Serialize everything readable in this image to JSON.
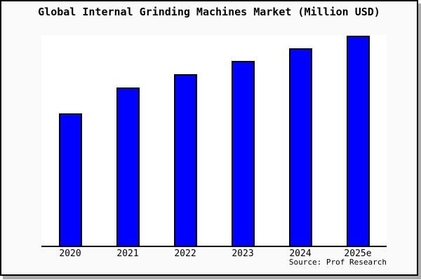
{
  "title": "Global Internal Grinding Machines Market (Million USD)",
  "source_caption": "Source: Prof Research",
  "chart_data": {
    "type": "bar",
    "title": "Global Internal Grinding Machines Market (Million USD)",
    "categories": [
      "2020",
      "2021",
      "2022",
      "2023",
      "2024",
      "2025e"
    ],
    "series": [
      {
        "name": "Internal Grinding Machines Market",
        "values_pct_of_max": [
          63,
          75,
          81.5,
          88,
          94,
          100
        ]
      }
    ],
    "bar_height_pct_of_plot": [
      62.8,
      75.1,
      81.4,
      87.7,
      93.7,
      99.7
    ],
    "xlabel": "",
    "ylabel": "",
    "y_axis_tick_labels": [],
    "grid": false,
    "legend": "none",
    "bar_color": "#0000FF",
    "bar_border_color": "#000000",
    "plot_bg_color": "#FFFFFF",
    "canvas_bg_color": "#FAFAFA",
    "frame_border_color": "#000000",
    "shadow_color": "#A9A9A9"
  }
}
